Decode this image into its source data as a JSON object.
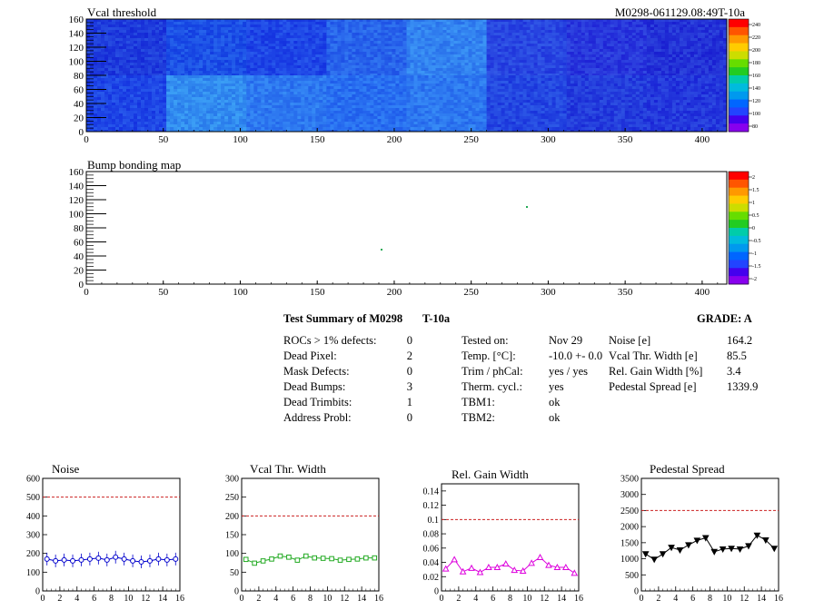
{
  "maps": [
    {
      "title": "Vcal threshold",
      "header_right": "M0298-061129.08:49T-10a",
      "y_ticks": [
        0,
        20,
        40,
        60,
        80,
        100,
        120,
        140,
        160
      ],
      "x_ticks": [
        0,
        50,
        100,
        150,
        200,
        250,
        300,
        350,
        400
      ],
      "palette_labels": [
        "240",
        "220",
        "200",
        "180",
        "160",
        "140",
        "120",
        "100",
        "80"
      ]
    },
    {
      "title": "Bump bonding map",
      "y_ticks": [
        0,
        20,
        40,
        60,
        80,
        100,
        120,
        140,
        160
      ],
      "x_ticks": [
        0,
        50,
        100,
        150,
        200,
        250,
        300,
        350,
        400
      ],
      "palette_labels": [
        "2",
        "1.5",
        "1",
        "0.5",
        "0",
        "-0.5",
        "-1",
        "-1.5",
        "-2"
      ]
    }
  ],
  "summary": {
    "title": "Test Summary of M0298",
    "temp_tag": "T-10a",
    "grade": "GRADE:  A",
    "defects": [
      {
        "label": "ROCs > 1% defects:",
        "value": "0"
      },
      {
        "label": "Dead Pixel:",
        "value": "2"
      },
      {
        "label": "Mask Defects:",
        "value": "0"
      },
      {
        "label": "Dead Bumps:",
        "value": "3"
      },
      {
        "label": "Dead Trimbits:",
        "value": "1"
      },
      {
        "label": "Address Probl:",
        "value": "0"
      }
    ],
    "conditions": [
      {
        "label": "Tested on:",
        "value": "Nov 29"
      },
      {
        "label": "Temp. [°C]:",
        "value": "-10.0 +- 0.0"
      },
      {
        "label": "Trim / phCal:",
        "value": "yes / yes"
      },
      {
        "label": "Therm. cycl.:",
        "value": "yes"
      },
      {
        "label": "TBM1:",
        "value": "ok"
      },
      {
        "label": "TBM2:",
        "value": "ok"
      }
    ],
    "metrics": [
      {
        "label": "Noise [e]",
        "value": "164.2"
      },
      {
        "label": "Vcal Thr. Width [e]",
        "value": "85.5"
      },
      {
        "label": "Rel. Gain Width [%]",
        "value": "3.4"
      },
      {
        "label": "Pedestal Spread [e]",
        "value": "1339.9"
      }
    ]
  },
  "chart_data": [
    {
      "type": "scatter",
      "title": "Noise",
      "marker": "circle",
      "color": "#0000cc",
      "x": [
        0,
        1,
        2,
        3,
        4,
        5,
        6,
        7,
        8,
        9,
        10,
        11,
        12,
        13,
        14,
        15
      ],
      "y": [
        170,
        160,
        165,
        160,
        165,
        170,
        175,
        165,
        180,
        170,
        160,
        155,
        160,
        170,
        165,
        170
      ],
      "xlim": [
        0,
        16
      ],
      "ylim": [
        0,
        600
      ],
      "x_ticks": [
        0,
        2,
        4,
        6,
        8,
        10,
        12,
        14,
        16
      ],
      "y_ticks": [
        0,
        100,
        200,
        300,
        400,
        500,
        600
      ],
      "threshold": 500
    },
    {
      "type": "line",
      "title": "Vcal Thr. Width",
      "marker": "square",
      "color": "#22aa22",
      "x": [
        0,
        1,
        2,
        3,
        4,
        5,
        6,
        7,
        8,
        9,
        10,
        11,
        12,
        13,
        14,
        15
      ],
      "y": [
        84,
        74,
        80,
        85,
        93,
        90,
        82,
        93,
        88,
        87,
        86,
        82,
        84,
        85,
        88,
        88
      ],
      "xlim": [
        0,
        16
      ],
      "ylim": [
        0,
        300
      ],
      "x_ticks": [
        0,
        2,
        4,
        6,
        8,
        10,
        12,
        14,
        16
      ],
      "y_ticks": [
        0,
        50,
        100,
        150,
        200,
        250,
        300
      ],
      "threshold": 200
    },
    {
      "type": "line",
      "title": "Rel. Gain Width",
      "marker": "triangle",
      "color": "#dd00dd",
      "x": [
        0,
        1,
        2,
        3,
        4,
        5,
        6,
        7,
        8,
        9,
        10,
        11,
        12,
        13,
        14,
        15
      ],
      "y": [
        0.031,
        0.044,
        0.027,
        0.032,
        0.026,
        0.033,
        0.033,
        0.038,
        0.029,
        0.028,
        0.039,
        0.047,
        0.036,
        0.033,
        0.033,
        0.025
      ],
      "xlim": [
        0,
        16
      ],
      "ylim": [
        0,
        0.15
      ],
      "x_ticks": [
        0,
        2,
        4,
        6,
        8,
        10,
        12,
        14,
        16
      ],
      "y_ticks": [
        0,
        0.02,
        0.04,
        0.06,
        0.08,
        0.1,
        0.12,
        0.14
      ],
      "threshold": 0.1
    },
    {
      "type": "line",
      "title": "Pedestal Spread",
      "marker": "triangle-down",
      "color": "#000000",
      "x": [
        0,
        1,
        2,
        3,
        4,
        5,
        6,
        7,
        8,
        9,
        10,
        11,
        12,
        13,
        14,
        15
      ],
      "y": [
        1150,
        980,
        1150,
        1350,
        1270,
        1430,
        1570,
        1650,
        1220,
        1300,
        1320,
        1300,
        1400,
        1730,
        1580,
        1320
      ],
      "xlim": [
        0,
        16
      ],
      "ylim": [
        0,
        3500
      ],
      "x_ticks": [
        0,
        2,
        4,
        6,
        8,
        10,
        12,
        14,
        16
      ],
      "y_ticks": [
        0,
        500,
        1000,
        1500,
        2000,
        2500,
        3000,
        3500
      ],
      "threshold": 2500
    }
  ]
}
